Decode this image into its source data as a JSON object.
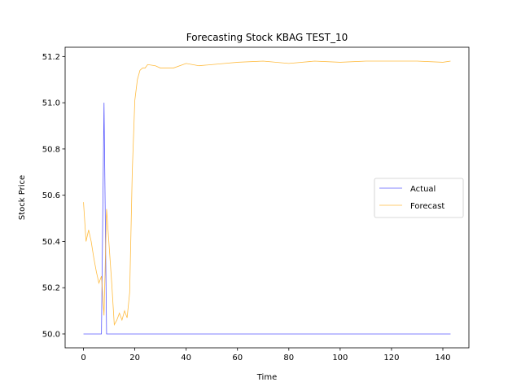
{
  "chart_data": {
    "type": "line",
    "title": "Forecasting Stock KBAG TEST_10",
    "xlabel": "Time",
    "ylabel": "Stock Price",
    "xlim": [
      -7.15,
      150.15
    ],
    "ylim": [
      49.94,
      51.24
    ],
    "x_ticks": [
      0,
      20,
      40,
      60,
      80,
      100,
      120,
      140
    ],
    "y_ticks": [
      50.0,
      50.2,
      50.4,
      50.6,
      50.8,
      51.0,
      51.2
    ],
    "y_tick_labels": [
      "50.0",
      "50.2",
      "50.4",
      "50.6",
      "50.8",
      "51.0",
      "51.2"
    ],
    "grid": false,
    "legend_position": "center-right",
    "series": [
      {
        "name": "Actual",
        "color": "#0000ff",
        "points": [
          [
            0,
            50.0
          ],
          [
            7,
            50.0
          ],
          [
            8,
            51.0
          ],
          [
            9,
            50.0
          ],
          [
            143,
            50.0
          ]
        ]
      },
      {
        "name": "Forecast",
        "color": "#ffa500",
        "points": [
          [
            0,
            50.57
          ],
          [
            1,
            50.4
          ],
          [
            2,
            50.45
          ],
          [
            3,
            50.4
          ],
          [
            4,
            50.33
          ],
          [
            5,
            50.27
          ],
          [
            6,
            50.22
          ],
          [
            7,
            50.25
          ],
          [
            8,
            50.08
          ],
          [
            9,
            50.54
          ],
          [
            10,
            50.38
          ],
          [
            11,
            50.22
          ],
          [
            12,
            50.04
          ],
          [
            13,
            50.06
          ],
          [
            14,
            50.09
          ],
          [
            15,
            50.06
          ],
          [
            16,
            50.1
          ],
          [
            17,
            50.07
          ],
          [
            18,
            50.18
          ],
          [
            19,
            50.7
          ],
          [
            20,
            51.01
          ],
          [
            21,
            51.1
          ],
          [
            22,
            51.14
          ],
          [
            23,
            51.15
          ],
          [
            24,
            51.15
          ],
          [
            25,
            51.165
          ],
          [
            28,
            51.16
          ],
          [
            30,
            51.15
          ],
          [
            35,
            51.15
          ],
          [
            40,
            51.17
          ],
          [
            45,
            51.16
          ],
          [
            55,
            51.17
          ],
          [
            60,
            51.175
          ],
          [
            70,
            51.18
          ],
          [
            80,
            51.17
          ],
          [
            90,
            51.18
          ],
          [
            100,
            51.175
          ],
          [
            110,
            51.18
          ],
          [
            120,
            51.18
          ],
          [
            130,
            51.18
          ],
          [
            140,
            51.175
          ],
          [
            143,
            51.18
          ]
        ]
      }
    ]
  }
}
